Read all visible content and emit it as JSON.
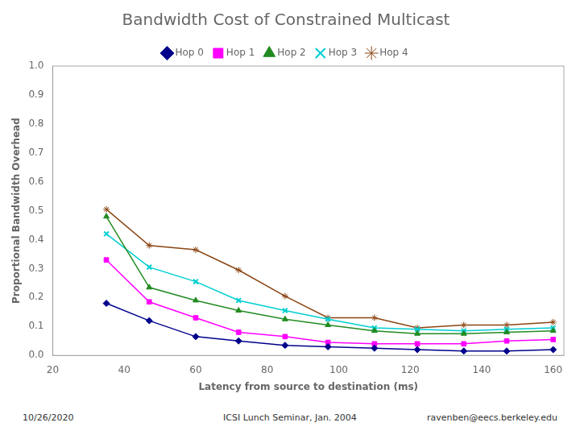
{
  "chart_data": {
    "type": "line",
    "title": "Bandwidth Cost of Constrained Multicast",
    "xlabel": "Latency from source to destination (ms)",
    "ylabel": "Proportional Bandwidth Overhead",
    "annotations": [
      "10/26/2020",
      "ICSI Lunch Seminar, Jan. 2004",
      "ravenben@eecs.berkeley.edu"
    ],
    "x": [
      35,
      47,
      60,
      72,
      85,
      97,
      110,
      122,
      135,
      147,
      160
    ],
    "series": [
      {
        "name": "Hop 0",
        "color": "#00008B",
        "marker": "diamond",
        "values": [
          0.18,
          0.12,
          0.065,
          0.05,
          0.035,
          0.03,
          0.025,
          0.02,
          0.015,
          0.015,
          0.02
        ]
      },
      {
        "name": "Hop 1",
        "color": "#FF00FF",
        "marker": "square",
        "values": [
          0.33,
          0.185,
          0.13,
          0.08,
          0.065,
          0.045,
          0.04,
          0.04,
          0.04,
          0.05,
          0.055
        ]
      },
      {
        "name": "Hop 2",
        "color": "#228B22",
        "marker": "triangle",
        "values": [
          0.48,
          0.235,
          0.19,
          0.155,
          0.125,
          0.105,
          0.085,
          0.075,
          0.075,
          0.08,
          0.085
        ]
      },
      {
        "name": "Hop 3",
        "color": "#00CED1",
        "marker": "x",
        "values": [
          0.42,
          0.305,
          0.255,
          0.19,
          0.155,
          0.125,
          0.095,
          0.09,
          0.085,
          0.09,
          0.095
        ]
      },
      {
        "name": "Hop 4",
        "color": "#8B4513",
        "marker": "star",
        "values": [
          0.505,
          0.38,
          0.365,
          0.295,
          0.205,
          0.13,
          0.13,
          0.095,
          0.105,
          0.105,
          0.115
        ]
      }
    ],
    "xlim": [
      20,
      163
    ],
    "ylim": [
      0,
      1.0
    ],
    "xticks": [
      20,
      40,
      60,
      80,
      100,
      120,
      140,
      160
    ],
    "yticks": [
      {
        "value": 0,
        "label": "0.0"
      },
      0.1,
      0.2,
      0.3,
      0.4,
      0.5,
      0.6,
      0.7,
      0.8,
      0.9,
      {
        "value": 1,
        "label": "1.0"
      }
    ],
    "legend": "top",
    "grid": false
  }
}
